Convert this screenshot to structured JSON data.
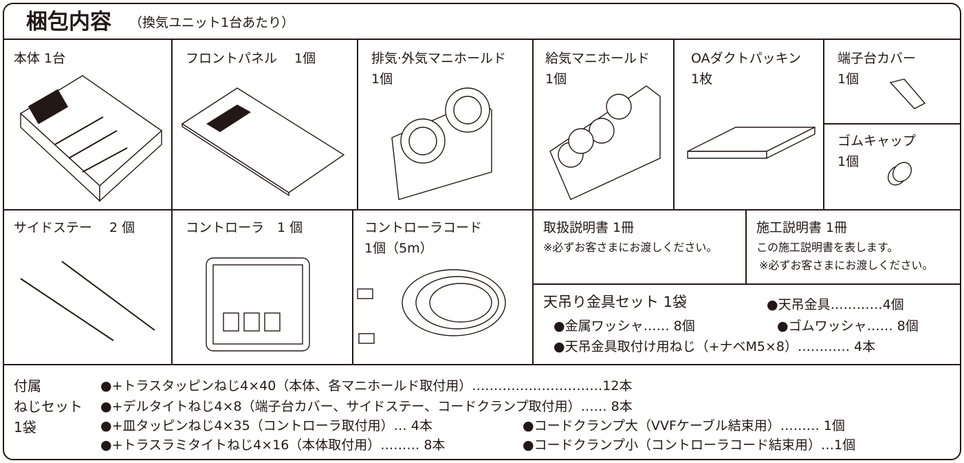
{
  "header": {
    "title": "梱包内容",
    "subtitle": "（換気ユニット1台あたり）"
  },
  "items": [
    {
      "lines": [
        "本体 1台"
      ]
    },
    {
      "lines": [
        "フロントパネル　 1個"
      ]
    },
    {
      "lines": [
        "排気·外気マニホールド",
        "1個"
      ]
    },
    {
      "lines": [
        "給気マニホールド",
        "1個"
      ]
    },
    {
      "lines": [
        "OAダクトパッキン",
        "1枚"
      ]
    },
    {
      "lines": [
        "端子台カバー",
        "1個"
      ]
    },
    {
      "lines": [
        "ゴムキャップ",
        "1個"
      ]
    },
    {
      "lines": [
        "サイドステー　 2 個"
      ]
    },
    {
      "lines": [
        "コントローラ　1 個"
      ]
    },
    {
      "lines": [
        "コントローラコード",
        "1個（5m）"
      ]
    }
  ],
  "manuals": [
    {
      "title": "取扱説明書 1冊",
      "notes": [
        "※必ずお客さまにお渡しください。"
      ]
    },
    {
      "title": "施工説明書 1冊",
      "notes": [
        "この施工説明書を表します。",
        "※必ずお客さまにお渡しください。"
      ]
    }
  ],
  "hanging_set": {
    "title": "天吊り金具セット 1袋",
    "entries": [
      "●天吊金具…………4個",
      "●金属ワッシャ…… 8個",
      "●ゴムワッシャ…… 8個",
      "●天吊金具取付け用ねじ（+ナベM5×8）………… 4本"
    ]
  },
  "screw_set": {
    "label": [
      "付属",
      "ねじセット",
      "1袋"
    ],
    "entries": [
      "●+トラスタッピンねじ4×40（本体、各マニホールド取付用）…………………………12本",
      "●+デルタイトねじ4×8（端子台カバー、サイドステー、コードクランプ取付用）…… 8本",
      "●+皿タッピンねじ4×35（コントローラ取付用）… 4本",
      "●コードクランプ大（VVFケーブル結束用）……… 1個",
      "●+トラスラミタイトねじ4×16（本体取付用）……… 8本",
      "●コードクランプ小（コントローラコード結束用）…1個"
    ]
  }
}
